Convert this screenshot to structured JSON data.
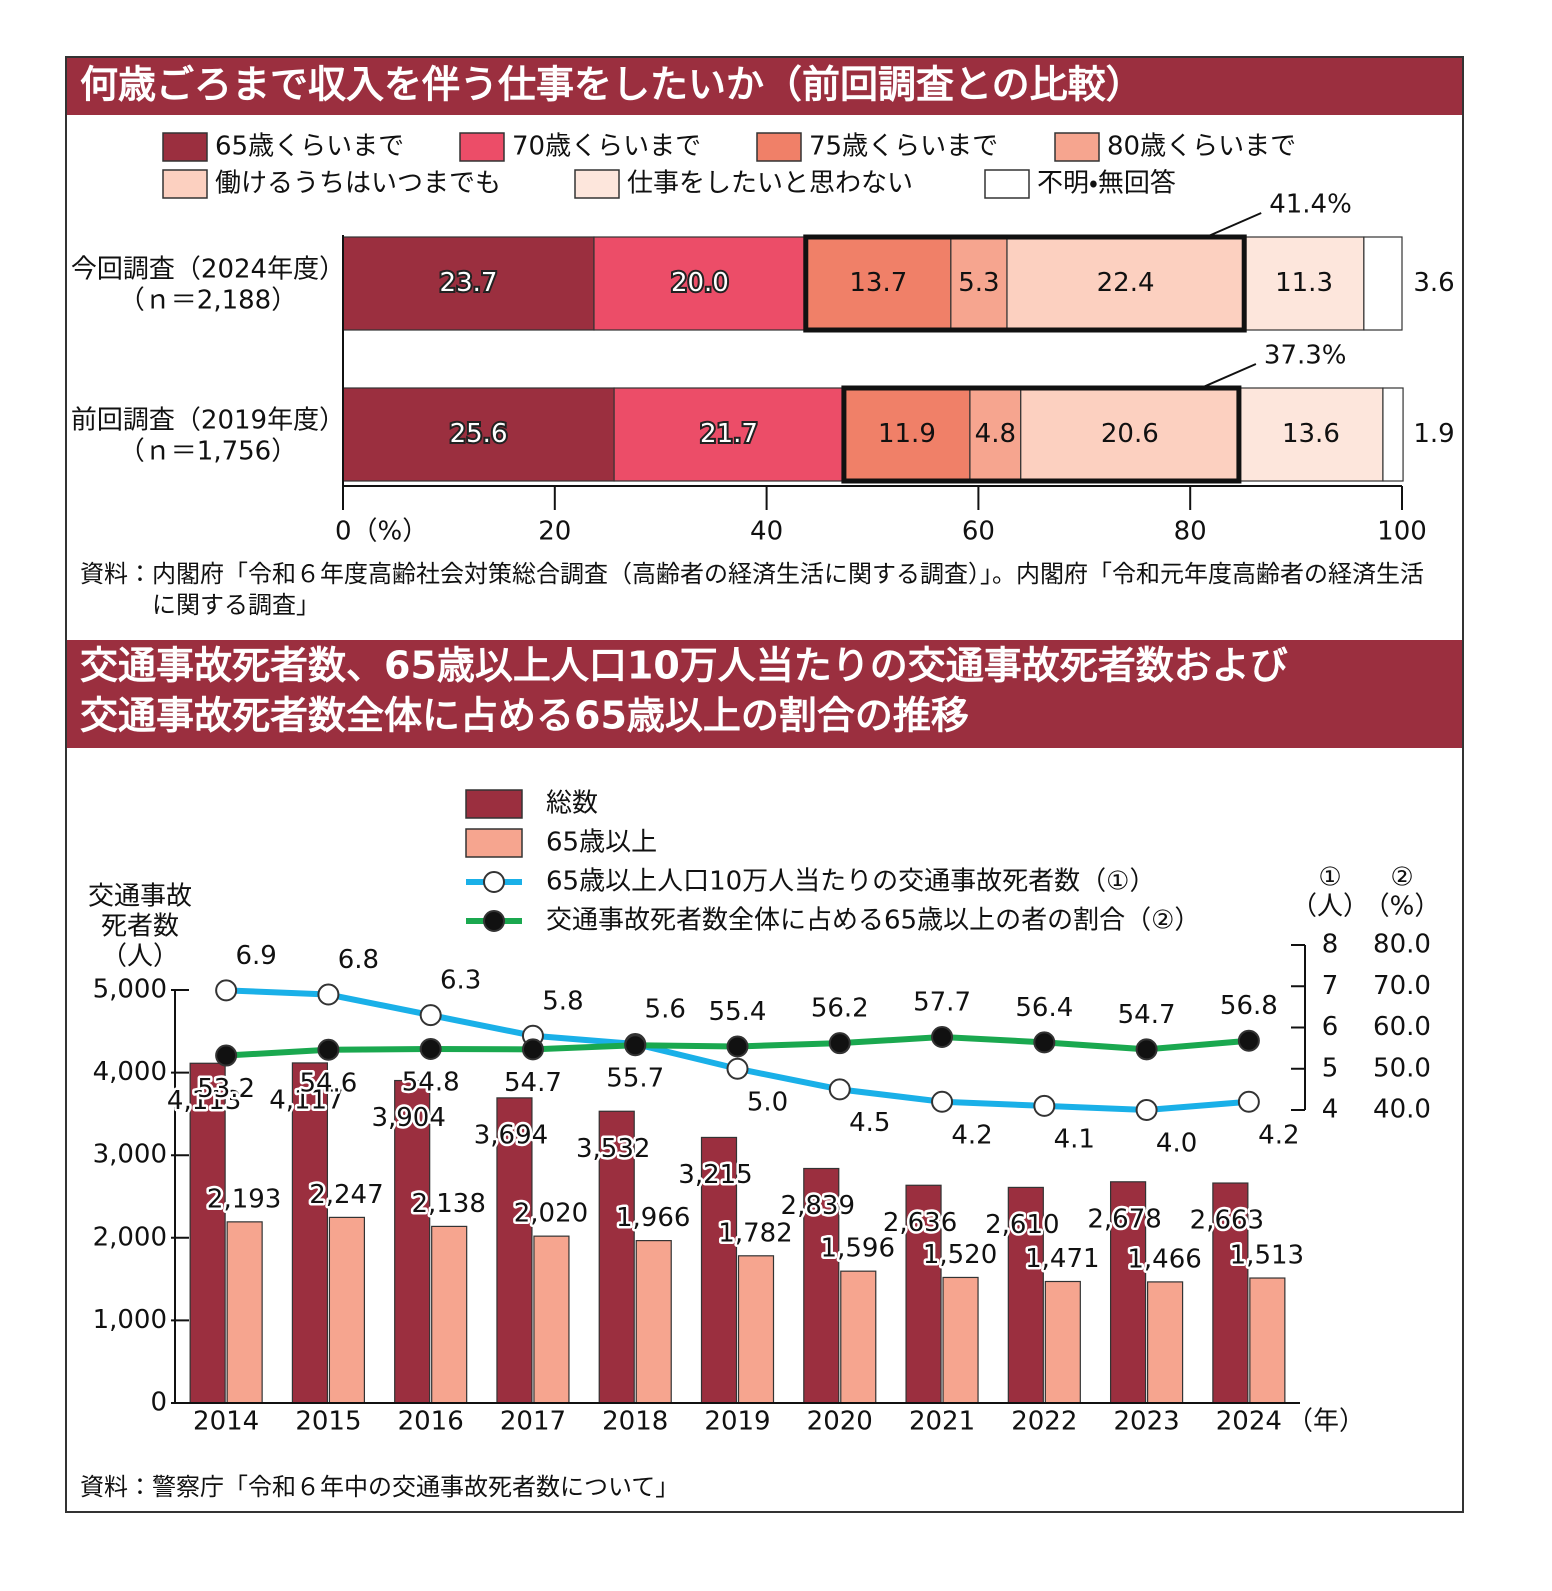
{
  "chart_data": [
    {
      "type": "stacked_bar_horizontal",
      "title": "何歳ごろまで収入を伴う仕事をしたいか（前回調査との比較）",
      "categories": [
        "今回調査（2024年度）",
        "前回調査（2019年度）"
      ],
      "sample_sizes": [
        "（ｎ＝2,188）",
        "（ｎ＝1,756）"
      ],
      "series": [
        {
          "name": "65歳くらいまで",
          "color": "#9b2f3f",
          "values": [
            23.7,
            25.6
          ]
        },
        {
          "name": "70歳くらいまで",
          "color": "#ec4d68",
          "values": [
            20.0,
            21.7
          ],
          "value_labels": [
            "20.0",
            "21.7"
          ]
        },
        {
          "name": "75歳くらいまで",
          "color": "#f08068",
          "values": [
            13.7,
            11.9
          ]
        },
        {
          "name": "80歳くらいまで",
          "color": "#f6a58f",
          "values": [
            5.3,
            4.8
          ]
        },
        {
          "name": "働けるうちはいつまでも",
          "color": "#fcd0c0",
          "values": [
            22.4,
            20.6
          ]
        },
        {
          "name": "仕事をしたいと思わない",
          "color": "#fde6dc",
          "values": [
            11.3,
            13.6
          ]
        },
        {
          "name": "不明・無回答",
          "color": "#ffffff",
          "values": [
            3.6,
            1.9
          ]
        }
      ],
      "bracket_series": [
        2,
        3,
        4
      ],
      "bracket_totals": [
        {
          "value": 41.4,
          "label": "41.4%"
        },
        {
          "value": 37.3,
          "label": "37.3%"
        }
      ],
      "xlim": [
        0,
        100
      ],
      "xticks": [
        {
          "value": 0,
          "label": "0（%）"
        },
        20,
        40,
        60,
        80,
        100
      ],
      "source": "資料：内閣府「令和６年度高齢社会対策総合調査（高齢者の経済生活に関する調査）」。内閣府「令和元年度高齢者の経済生活に関する調査」"
    },
    {
      "type": "bar_line",
      "title_lines": [
        "交通事故死者数、65歳以上人口10万人当たりの交通事故死者数および",
        "交通事故死者数全体に占める65歳以上の割合の推移"
      ],
      "categories": [
        "2014",
        "2015",
        "2016",
        "2017",
        "2018",
        "2019",
        "2020",
        "2021",
        "2022",
        "2023",
        "2024"
      ],
      "x_unit": "（年）",
      "y_label_lines": [
        "交通事故",
        "死者数",
        "（人）"
      ],
      "y2_label_lines": [
        "①",
        "（人）"
      ],
      "y3_label_lines": [
        "②",
        "（%）"
      ],
      "ylim": [
        0,
        5000
      ],
      "yticks": [
        0,
        {
          "value": 1000,
          "label": "1,000"
        },
        {
          "value": 2000,
          "label": "2,000"
        },
        {
          "value": 3000,
          "label": "3,000"
        },
        {
          "value": 4000,
          "label": "4,000"
        },
        {
          "value": 5000,
          "label": "5,000"
        }
      ],
      "y2lim": [
        4,
        8
      ],
      "y2ticks": [
        4,
        5,
        6,
        7,
        8
      ],
      "y3lim": [
        40,
        80
      ],
      "y3ticks": [
        {
          "value": 40,
          "label": "40.0"
        },
        {
          "value": 50,
          "label": "50.0"
        },
        {
          "value": 60,
          "label": "60.0"
        },
        {
          "value": 70,
          "label": "70.0"
        },
        {
          "value": 80,
          "label": "80.0"
        }
      ],
      "series": [
        {
          "name": "総数",
          "kind": "bar",
          "color": "#9b2f3f",
          "values": [
            4113,
            4117,
            3904,
            3694,
            3532,
            3215,
            2839,
            2636,
            2610,
            2678,
            2663
          ],
          "value_labels": [
            "4,113",
            "4,117",
            "3,904",
            "3,694",
            "3,532",
            "3,215",
            "2,839",
            "2,636",
            "2,610",
            "2,678",
            "2,663"
          ]
        },
        {
          "name": "65歳以上",
          "kind": "bar",
          "color": "#f6a58f",
          "values": [
            2193,
            2247,
            2138,
            2020,
            1966,
            1782,
            1596,
            1520,
            1471,
            1466,
            1513
          ],
          "value_labels": [
            "2,193",
            "2,247",
            "2,138",
            "2,020",
            "1,966",
            "1,782",
            "1,596",
            "1,520",
            "1,471",
            "1,466",
            "1,513"
          ]
        },
        {
          "name": "65歳以上人口10万人当たりの交通事故死者数（①）",
          "kind": "line",
          "axis": "y2",
          "color": "#1ab0e8",
          "marker": "open",
          "values": [
            6.9,
            6.8,
            6.3,
            5.8,
            5.6,
            5.0,
            4.5,
            4.2,
            4.1,
            4.0,
            4.2
          ],
          "value_labels": [
            "6.9",
            "6.8",
            "6.3",
            "5.8",
            "5.6",
            "5.0",
            "4.5",
            "4.2",
            "4.1",
            "4.0",
            "4.2"
          ]
        },
        {
          "name": "交通事故死者数全体に占める65歳以上の者の割合（②）",
          "kind": "line",
          "axis": "y3",
          "color": "#1aa84f",
          "marker": "filled",
          "values": [
            53.2,
            54.6,
            54.8,
            54.7,
            55.7,
            55.4,
            56.2,
            57.7,
            56.4,
            54.7,
            56.8
          ]
        }
      ],
      "source": "資料：警察庁「令和６年中の交通事故死者数について」"
    }
  ]
}
